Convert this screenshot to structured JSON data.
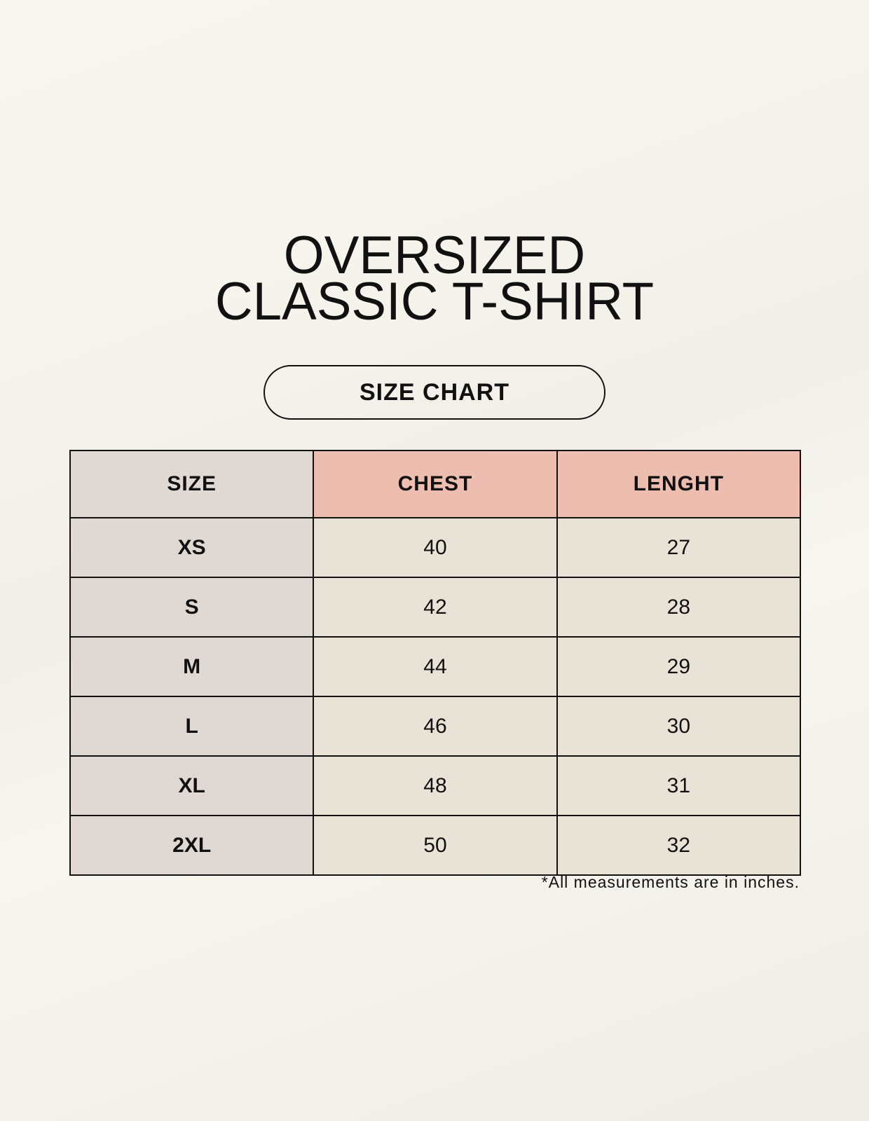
{
  "title": {
    "line1": "OVERSIZED",
    "line2": "CLASSIC T-SHIRT"
  },
  "badge": "SIZE CHART",
  "table": {
    "headers": [
      "SIZE",
      "CHEST",
      "LENGHT"
    ],
    "rows": [
      [
        "XS",
        "40",
        "27"
      ],
      [
        "S",
        "42",
        "28"
      ],
      [
        "M",
        "44",
        "29"
      ],
      [
        "L",
        "46",
        "30"
      ],
      [
        "XL",
        "48",
        "31"
      ],
      [
        "2XL",
        "50",
        "32"
      ]
    ]
  },
  "footnote": "*All measurements are in inches.",
  "colors": {
    "header_accent": "#edbdaf",
    "size_column": "#e0d9d3",
    "cell": "#e9e2d7"
  }
}
